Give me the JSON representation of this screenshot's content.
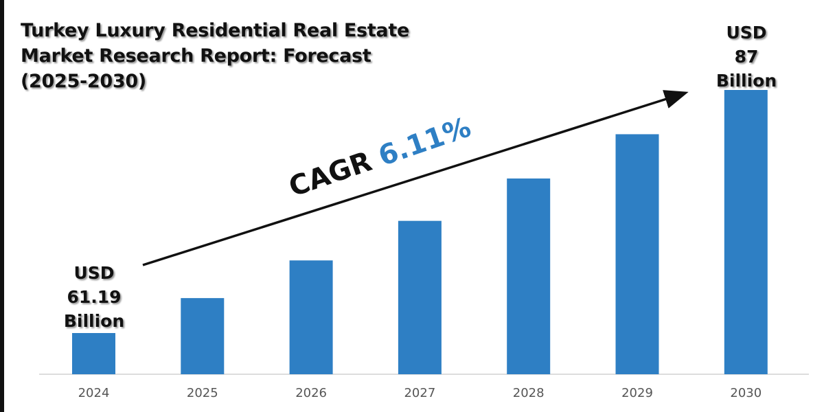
{
  "chart_data": {
    "type": "bar",
    "title": "Turkey Luxury Residential Real Estate Market Research Report: Forecast (2025-2030)",
    "title_lines": [
      "Turkey Luxury Residential Real Estate",
      "Market Research Report: Forecast",
      "(2025-2030)"
    ],
    "categories": [
      "2024",
      "2025",
      "2026",
      "2027",
      "2028",
      "2029",
      "2030"
    ],
    "values": [
      61.19,
      64.9,
      68.9,
      73.1,
      77.6,
      82.3,
      87
    ],
    "unit": "USD Billion",
    "bar_color": "#2e7fc4",
    "grid": false,
    "annotations": {
      "start": {
        "line1": "USD",
        "line2": "61.19",
        "line3": "Billion"
      },
      "end": {
        "line1": "USD",
        "line2": "87",
        "line3": "Billion"
      },
      "cagr_label": "CAGR",
      "cagr_value": "6.11%"
    }
  }
}
